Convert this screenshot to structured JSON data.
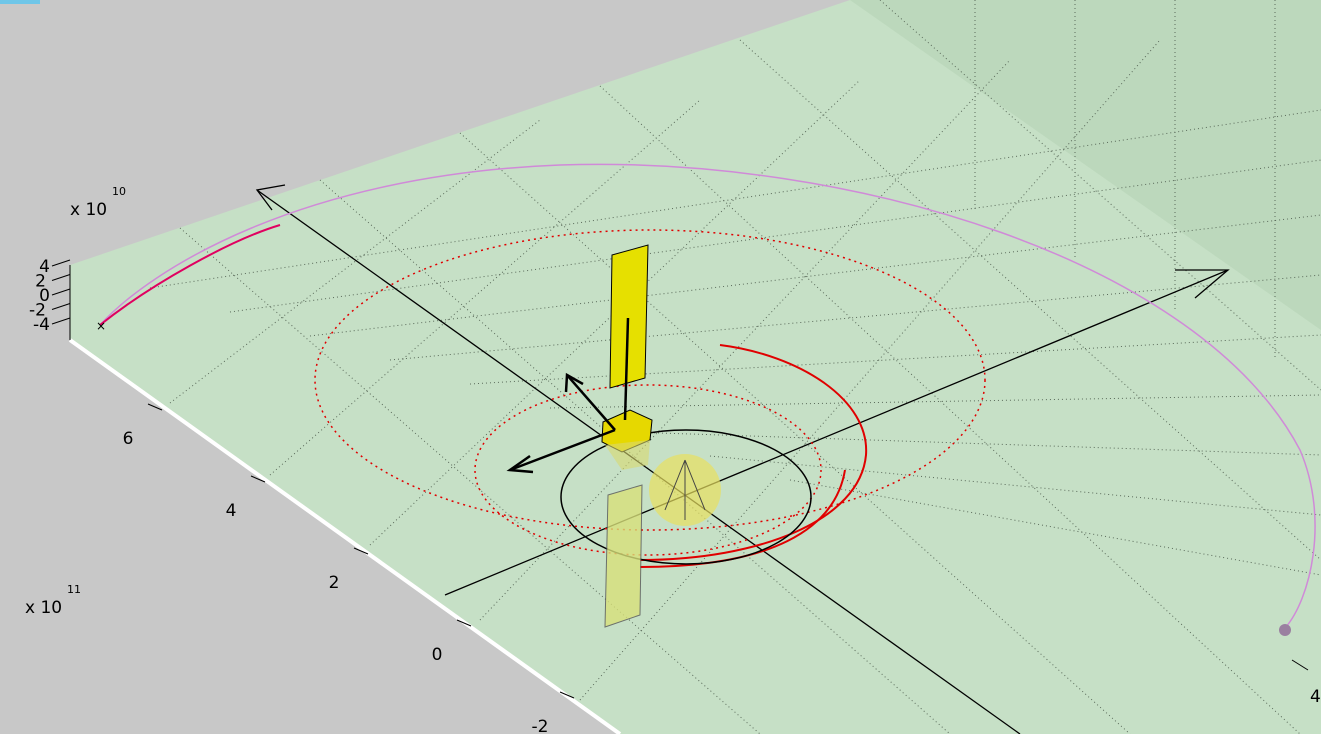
{
  "z_axis": {
    "multiplier": "x 10",
    "exponent": 10,
    "ticks": [
      4,
      2,
      0,
      -2,
      -4
    ]
  },
  "y_axis": {
    "multiplier": "x 10",
    "exponent": 11,
    "ticks": [
      6,
      4,
      2,
      0,
      -2
    ]
  },
  "x_axis": {
    "ticks": [
      4
    ]
  }
}
